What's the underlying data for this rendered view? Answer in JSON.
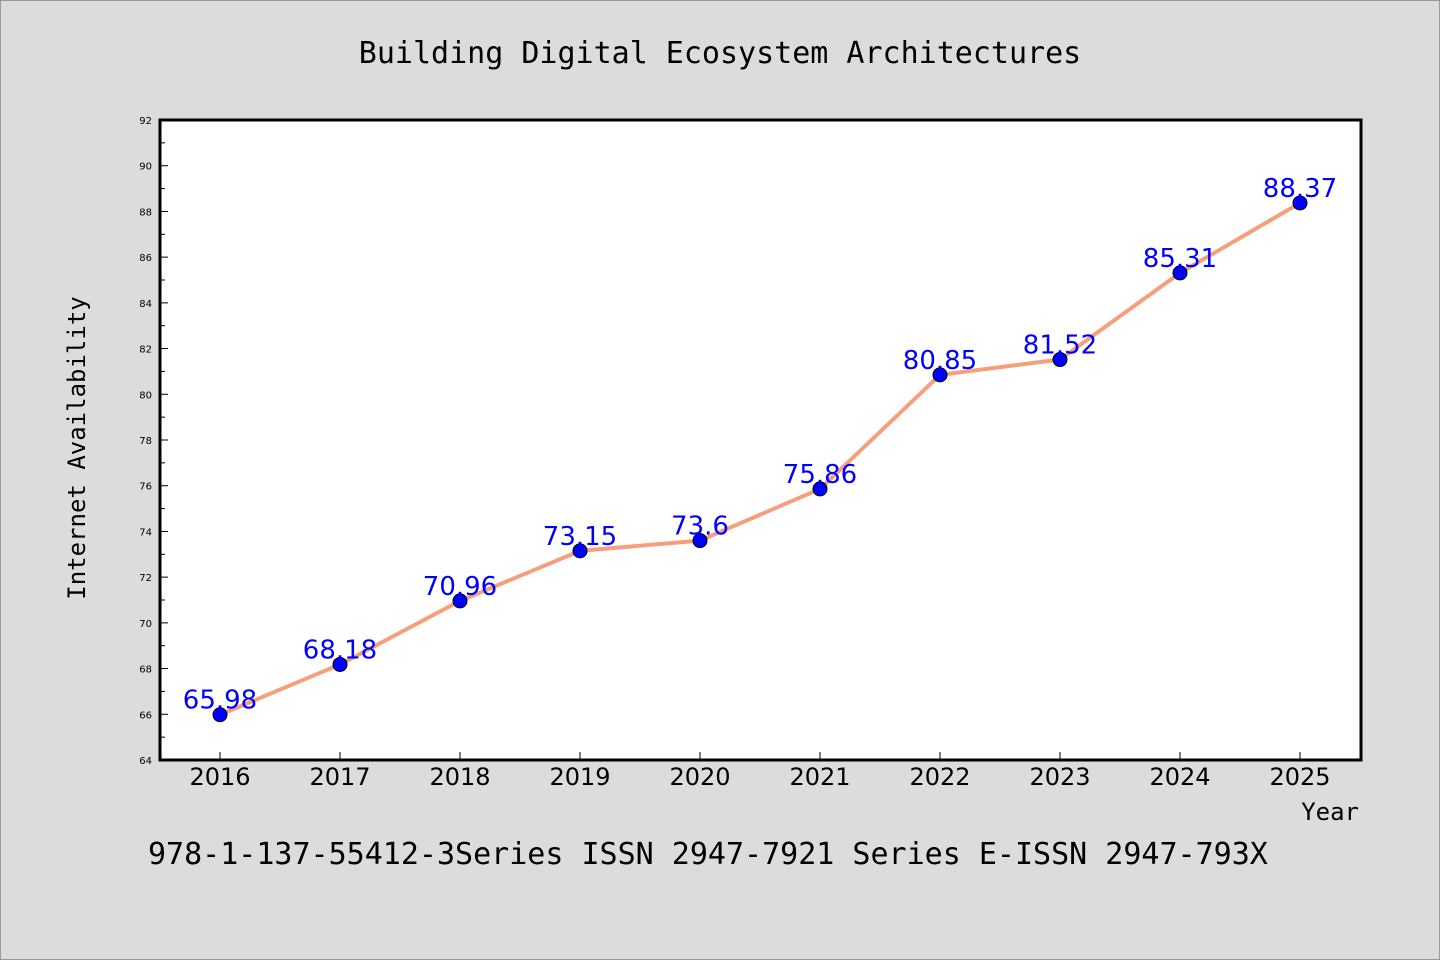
{
  "chart_data": {
    "type": "line",
    "title": "Building Digital Ecosystem Architectures",
    "xlabel": "Year",
    "ylabel": "Internet Availability",
    "categories": [
      "2016",
      "2017",
      "2018",
      "2019",
      "2020",
      "2021",
      "2022",
      "2023",
      "2024",
      "2025"
    ],
    "values": [
      65.98,
      68.18,
      70.96,
      73.15,
      73.6,
      75.86,
      80.85,
      81.52,
      85.31,
      88.37
    ],
    "data_labels": [
      "65.98",
      "68.18",
      "70.96",
      "73.15",
      "73.6",
      "75.86",
      "80.85",
      "81.52",
      "85.31",
      "88.37"
    ],
    "ylim": [
      64,
      92
    ],
    "yticks": [
      64,
      66,
      68,
      70,
      72,
      74,
      76,
      78,
      80,
      82,
      84,
      86,
      88,
      90,
      92
    ],
    "line_color": "#f4a07c",
    "marker_color": "#0000ff",
    "label_color": "#0000ff",
    "grid": false,
    "legend": "none"
  },
  "footer": {
    "text": "978-1-137-55412-3Series ISSN 2947-7921 Series E-ISSN 2947-793X"
  },
  "colors": {
    "background": "#dcdcdc",
    "plot_background": "#ffffff"
  }
}
